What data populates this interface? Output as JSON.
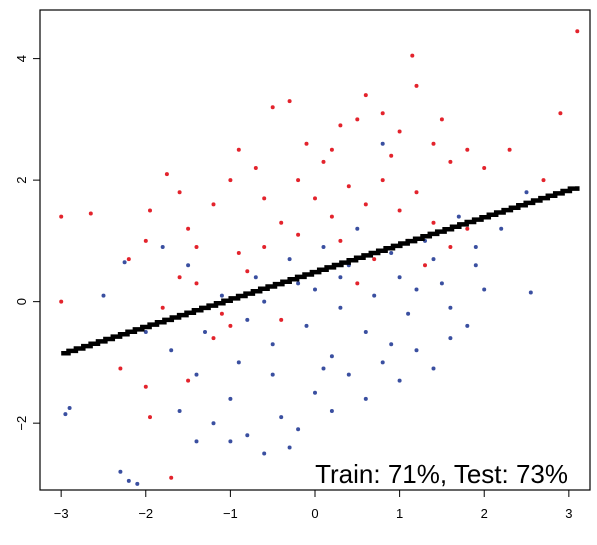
{
  "chart_data": {
    "type": "scatter",
    "title": "",
    "xlabel": "",
    "ylabel": "",
    "xlim": [
      -3.25,
      3.25
    ],
    "ylim": [
      -3.1,
      4.8
    ],
    "x_ticks": [
      "-3",
      "-2",
      "-1",
      "0",
      "1",
      "2",
      "3"
    ],
    "y_ticks": [
      "-2",
      "0",
      "2",
      "4"
    ],
    "grid": false,
    "legend": "none",
    "colors": {
      "class_a": "#e3232c",
      "class_b": "#3a4fa0",
      "boundary": "#000000"
    },
    "series": [
      {
        "color": "#e3232c",
        "points": [
          [
            -3.0,
            1.4
          ],
          [
            -2.65,
            1.45
          ],
          [
            -3.0,
            0.0
          ],
          [
            -2.2,
            0.7
          ],
          [
            -2.0,
            1.0
          ],
          [
            -1.95,
            1.5
          ],
          [
            -1.75,
            2.1
          ],
          [
            -1.6,
            1.8
          ],
          [
            -1.5,
            1.2
          ],
          [
            -1.4,
            0.9
          ],
          [
            -1.2,
            1.6
          ],
          [
            -1.0,
            2.0
          ],
          [
            -0.9,
            2.5
          ],
          [
            -0.7,
            2.2
          ],
          [
            -0.5,
            3.2
          ],
          [
            -0.3,
            3.3
          ],
          [
            -0.1,
            2.6
          ],
          [
            0.1,
            2.3
          ],
          [
            0.3,
            2.9
          ],
          [
            0.5,
            3.0
          ],
          [
            0.6,
            3.4
          ],
          [
            0.8,
            3.1
          ],
          [
            1.0,
            2.8
          ],
          [
            1.15,
            4.05
          ],
          [
            1.2,
            3.55
          ],
          [
            1.4,
            2.6
          ],
          [
            1.5,
            3.0
          ],
          [
            1.6,
            2.3
          ],
          [
            1.8,
            2.5
          ],
          [
            2.0,
            2.2
          ],
          [
            2.3,
            2.5
          ],
          [
            2.9,
            3.1
          ],
          [
            3.1,
            4.45
          ],
          [
            2.7,
            2.0
          ],
          [
            -2.3,
            -1.1
          ],
          [
            -2.0,
            -1.4
          ],
          [
            -1.95,
            -1.9
          ],
          [
            -1.7,
            -2.9
          ],
          [
            -1.5,
            -1.3
          ],
          [
            -1.2,
            -0.6
          ],
          [
            -1.0,
            -0.4
          ],
          [
            -0.8,
            0.5
          ],
          [
            -0.6,
            0.9
          ],
          [
            -0.4,
            1.3
          ],
          [
            -0.2,
            1.1
          ],
          [
            0.0,
            1.7
          ],
          [
            0.2,
            1.4
          ],
          [
            0.4,
            1.9
          ],
          [
            0.6,
            1.6
          ],
          [
            0.8,
            2.0
          ],
          [
            1.0,
            1.5
          ],
          [
            1.2,
            1.8
          ],
          [
            1.4,
            1.3
          ],
          [
            1.6,
            0.9
          ],
          [
            1.8,
            1.2
          ],
          [
            -1.8,
            -0.1
          ],
          [
            -1.4,
            0.3
          ],
          [
            -0.9,
            0.8
          ],
          [
            -0.2,
            2.0
          ],
          [
            0.3,
            1.0
          ],
          [
            0.7,
            0.7
          ],
          [
            1.1,
            1.0
          ],
          [
            -0.6,
            1.7
          ],
          [
            -1.1,
            -0.2
          ],
          [
            0.2,
            2.5
          ],
          [
            0.9,
            2.4
          ],
          [
            -1.6,
            0.4
          ],
          [
            -0.4,
            -0.3
          ],
          [
            0.5,
            0.3
          ],
          [
            1.3,
            0.6
          ]
        ]
      },
      {
        "color": "#3a4fa0",
        "points": [
          [
            -2.9,
            -1.75
          ],
          [
            -2.95,
            -1.85
          ],
          [
            -2.3,
            -2.8
          ],
          [
            -2.2,
            -2.95
          ],
          [
            -2.1,
            -3.0
          ],
          [
            -2.25,
            0.65
          ],
          [
            -2.5,
            0.1
          ],
          [
            -2.0,
            -0.5
          ],
          [
            -1.6,
            -1.8
          ],
          [
            -1.4,
            -2.3
          ],
          [
            -1.2,
            -2.0
          ],
          [
            -1.0,
            -1.6
          ],
          [
            -0.8,
            -2.2
          ],
          [
            -0.6,
            -2.5
          ],
          [
            -0.4,
            -1.9
          ],
          [
            -0.2,
            -2.1
          ],
          [
            0.0,
            -1.5
          ],
          [
            0.2,
            -1.8
          ],
          [
            0.4,
            -1.2
          ],
          [
            0.6,
            -1.6
          ],
          [
            0.8,
            -1.0
          ],
          [
            1.0,
            -1.3
          ],
          [
            1.2,
            -0.8
          ],
          [
            1.4,
            -1.1
          ],
          [
            1.6,
            -0.6
          ],
          [
            1.8,
            -0.4
          ],
          [
            2.0,
            0.2
          ],
          [
            2.2,
            1.2
          ],
          [
            2.5,
            1.8
          ],
          [
            2.55,
            0.15
          ],
          [
            -1.7,
            -0.8
          ],
          [
            -1.3,
            -0.5
          ],
          [
            -0.9,
            -1.0
          ],
          [
            -0.5,
            -0.7
          ],
          [
            -0.1,
            -0.4
          ],
          [
            0.3,
            -0.1
          ],
          [
            0.7,
            0.1
          ],
          [
            1.1,
            -0.2
          ],
          [
            1.5,
            0.3
          ],
          [
            1.9,
            0.6
          ],
          [
            -1.5,
            0.6
          ],
          [
            -1.1,
            0.1
          ],
          [
            -0.7,
            0.4
          ],
          [
            -0.3,
            0.7
          ],
          [
            0.1,
            0.9
          ],
          [
            0.5,
            1.2
          ],
          [
            0.9,
            0.8
          ],
          [
            1.3,
            1.0
          ],
          [
            1.7,
            1.4
          ],
          [
            -0.5,
            -1.2
          ],
          [
            0.2,
            -0.9
          ],
          [
            0.6,
            -0.5
          ],
          [
            1.0,
            0.4
          ],
          [
            -1.8,
            0.9
          ],
          [
            -0.8,
            -0.3
          ],
          [
            0.0,
            0.2
          ],
          [
            0.4,
            0.6
          ],
          [
            1.2,
            0.2
          ],
          [
            1.6,
            -0.1
          ],
          [
            -1.0,
            -2.3
          ],
          [
            -0.3,
            -2.4
          ],
          [
            0.8,
            2.6
          ],
          [
            1.9,
            0.9
          ],
          [
            -0.6,
            0.0
          ],
          [
            0.1,
            -1.1
          ],
          [
            0.9,
            -0.7
          ],
          [
            -1.4,
            -1.2
          ],
          [
            1.4,
            0.7
          ],
          [
            0.3,
            0.4
          ],
          [
            -0.2,
            0.3
          ]
        ]
      }
    ],
    "boundary_line": {
      "x": [
        -3.0,
        3.1
      ],
      "y": [
        -0.85,
        1.9
      ]
    },
    "annotation": "Train: 71%, Test: 73%"
  }
}
